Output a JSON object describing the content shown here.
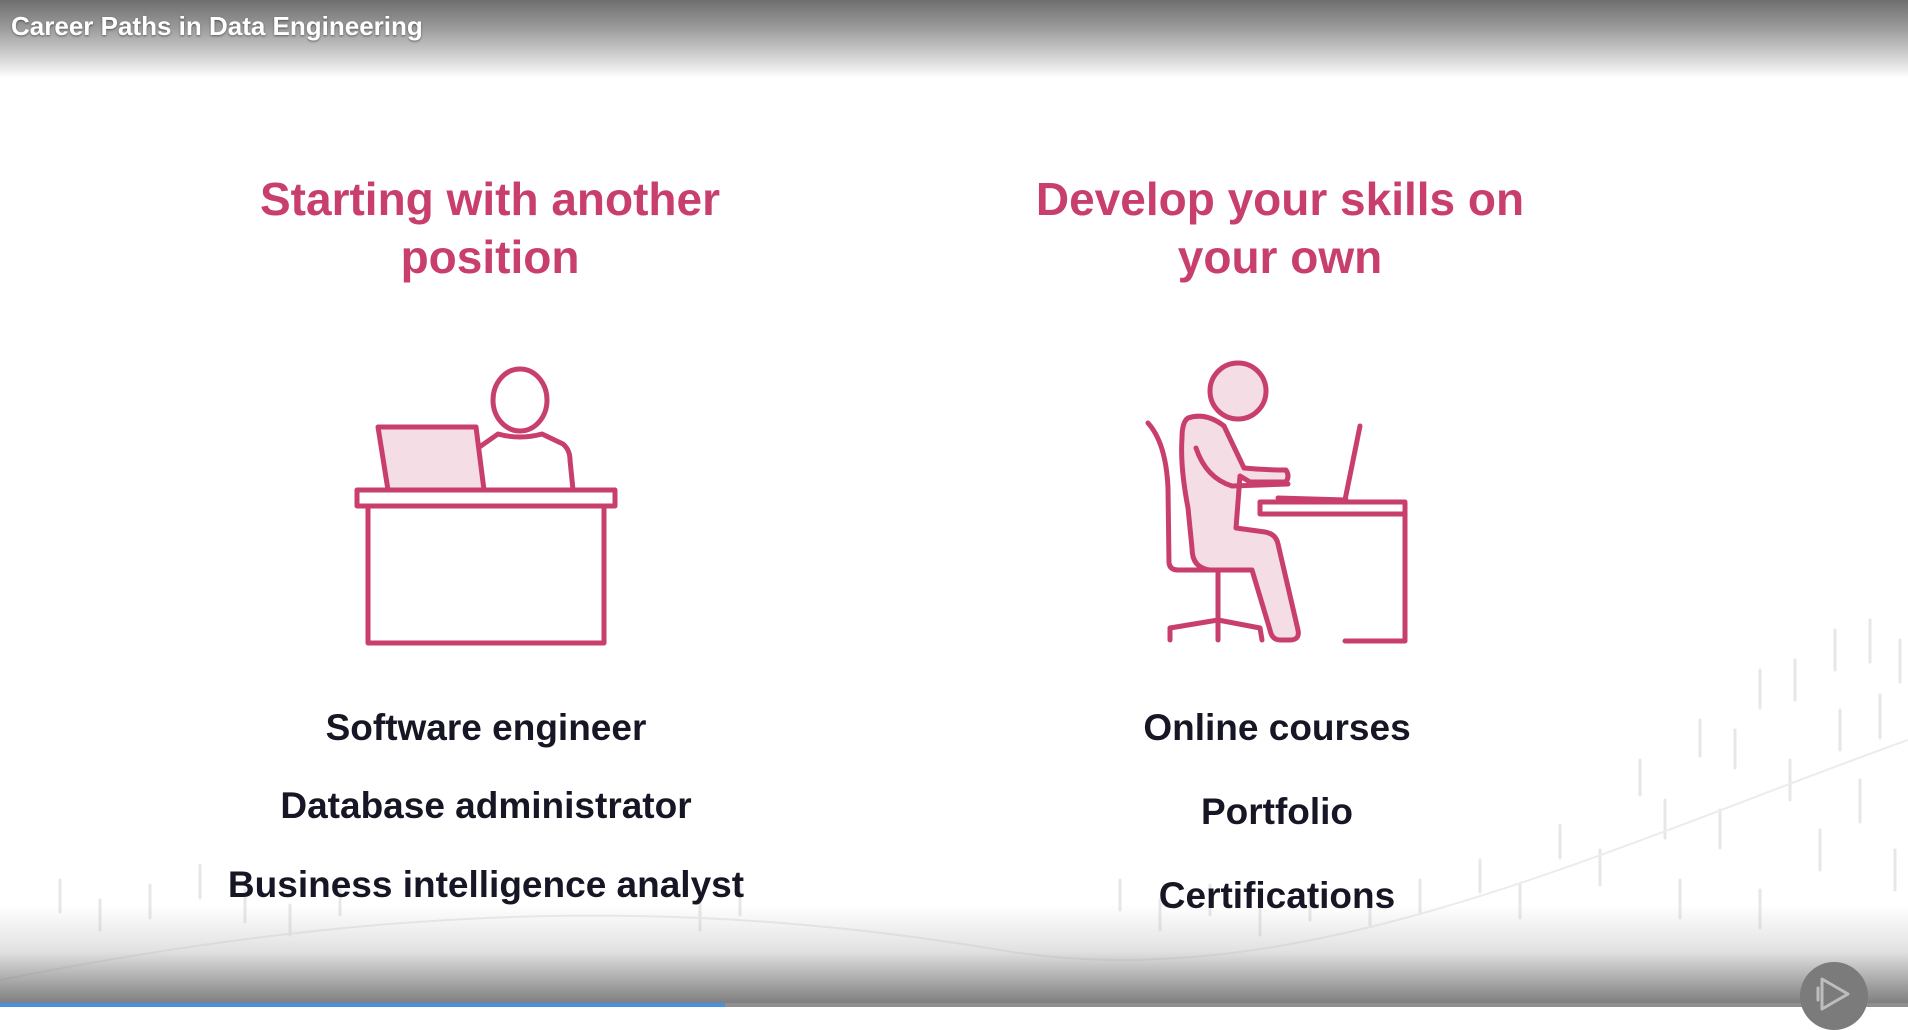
{
  "video": {
    "title": "Career Paths in Data Engineering",
    "progress_percent": 38
  },
  "colors": {
    "accent": "#c83f6e",
    "accent_fill": "#f5dde6",
    "text_dark": "#161625"
  },
  "left": {
    "heading_line1": "Starting with another",
    "heading_line2": "position",
    "icon": "person-at-desk-with-laptop-icon",
    "items": [
      "Software engineer",
      "Database administrator",
      "Business intelligence analyst"
    ]
  },
  "right": {
    "heading_line1": "Develop your skills on",
    "heading_line2": "your own",
    "icon": "person-seated-at-computer-icon",
    "items": [
      "Online courses",
      "Portfolio",
      "Certifications"
    ]
  },
  "player": {
    "play_icon": "play-icon"
  }
}
